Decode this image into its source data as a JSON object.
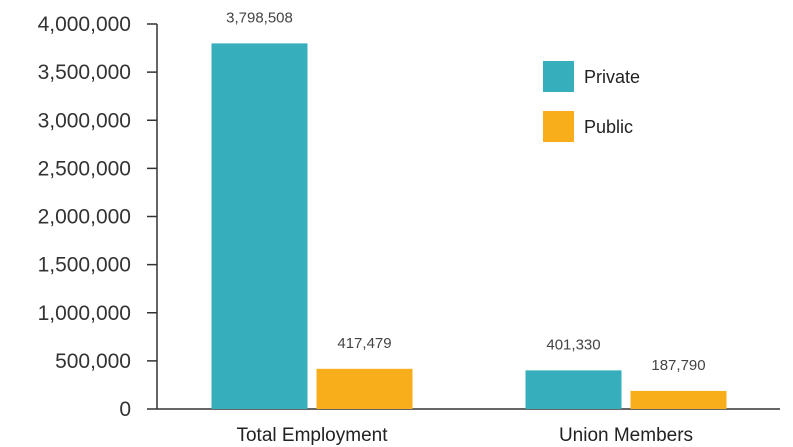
{
  "chart_data": {
    "type": "bar",
    "title": "",
    "xlabel": "",
    "ylabel": "",
    "categories": [
      "Total Employment",
      "Union Members"
    ],
    "series": [
      {
        "name": "Private",
        "color": "#36AEBB",
        "values": [
          3798508,
          401330
        ],
        "value_labels": [
          "3,798,508",
          "401,330"
        ]
      },
      {
        "name": "Public",
        "color": "#F8AE1B",
        "values": [
          417479,
          187790
        ],
        "value_labels": [
          "417,479",
          "187,790"
        ]
      }
    ],
    "ylim": [
      0,
      4000000
    ],
    "yticks": [
      0,
      500000,
      1000000,
      1500000,
      2000000,
      2500000,
      3000000,
      3500000,
      4000000
    ],
    "ytick_labels": [
      "0",
      "500,000",
      "1,000,000",
      "1,500,000",
      "2,000,000",
      "2,500,000",
      "3,000,000",
      "3,500,000",
      "4,000,000"
    ],
    "legend_position": "top-right",
    "grid": false
  }
}
